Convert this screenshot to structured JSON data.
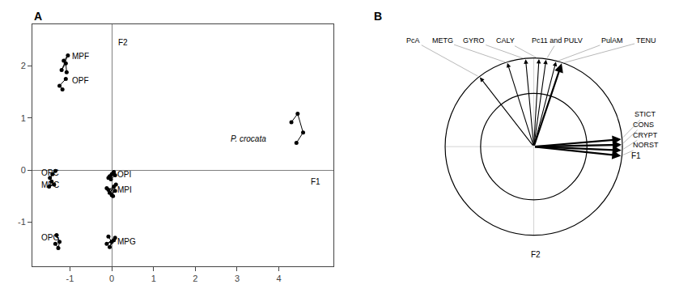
{
  "chart_data": [
    {
      "type": "scatter",
      "title": "A",
      "xlim": [
        -1.9,
        5.3
      ],
      "ylim": [
        -1.85,
        2.8
      ],
      "xticks": [
        -1,
        0,
        1,
        2,
        3,
        4
      ],
      "yticks": [
        -1,
        0,
        1,
        2
      ],
      "grid": false,
      "color": "black",
      "marker": "circle",
      "line_style": "solid",
      "series": [
        {
          "x": [
            -1.15,
            -1.05,
            -1.2,
            -1.1,
            -1.08
          ],
          "y": [
            2.1,
            2.2,
            1.92,
            2.05,
            1.88
          ]
        },
        {
          "x": [
            -1.1,
            -1.25,
            -1.18
          ],
          "y": [
            1.75,
            1.62,
            1.55
          ]
        },
        {
          "x": [
            -1.42,
            -1.35,
            -1.48
          ],
          "y": [
            -0.08,
            -0.02,
            -0.15
          ]
        },
        {
          "x": [
            -1.38,
            -1.5,
            -1.44
          ],
          "y": [
            -0.28,
            -0.32,
            -0.22
          ]
        },
        {
          "x": [
            -1.32,
            -1.25,
            -1.28,
            -1.35
          ],
          "y": [
            -1.25,
            -1.38,
            -1.5,
            -1.42
          ]
        },
        {
          "x": [
            -0.08,
            0.0,
            -0.05,
            0.05,
            -0.12,
            0.08
          ],
          "y": [
            -1.28,
            -1.38,
            -1.48,
            -1.35,
            -1.42,
            -1.3
          ]
        },
        {
          "x": [
            -0.05,
            0.0,
            0.05,
            -0.02,
            0.08,
            0.03,
            -0.08
          ],
          "y": [
            -0.12,
            -0.08,
            -0.04,
            -0.18,
            -0.1,
            -0.06,
            -0.15
          ]
        },
        {
          "x": [
            -0.08,
            0.05,
            -0.05,
            0.1,
            0.0,
            0.08,
            -0.12,
            0.03
          ],
          "y": [
            -0.38,
            -0.32,
            -0.44,
            -0.28,
            -0.48,
            -0.4,
            -0.35,
            -0.5
          ]
        },
        {
          "x": [
            4.3,
            4.45,
            4.58,
            4.42
          ],
          "y": [
            0.92,
            1.08,
            0.72,
            0.52
          ]
        }
      ],
      "annotations": [
        {
          "text": "MPF",
          "x": -0.98,
          "y": 2.18,
          "italic": false
        },
        {
          "text": "OPF",
          "x": -0.98,
          "y": 1.72,
          "italic": false
        },
        {
          "text": "OPC",
          "x": -1.72,
          "y": -0.05,
          "italic": false
        },
        {
          "text": "MPC",
          "x": -1.72,
          "y": -0.28,
          "italic": false
        },
        {
          "text": "OPG",
          "x": -1.72,
          "y": -1.3,
          "italic": false
        },
        {
          "text": "MPG",
          "x": 0.1,
          "y": -1.38,
          "italic": false
        },
        {
          "text": "OPI",
          "x": 0.1,
          "y": -0.08,
          "italic": false
        },
        {
          "text": "MPI",
          "x": 0.1,
          "y": -0.38,
          "italic": false
        },
        {
          "text": "P. crocata",
          "x": 2.8,
          "y": 0.6,
          "italic": true
        },
        {
          "text": "F1",
          "x": 4.72,
          "y": -0.22,
          "italic": false
        },
        {
          "text": "F2",
          "x": 0.12,
          "y": 2.45,
          "italic": false
        }
      ]
    },
    {
      "type": "correlation_circle",
      "title": "B",
      "xlim": [
        -1.65,
        1.55
      ],
      "ylim": [
        -1.35,
        1.38
      ],
      "tick_labels": false,
      "grid": false,
      "color": "black",
      "circles": [
        1.0,
        0.6
      ],
      "arrows": [
        {
          "label": "PcA",
          "x": -0.6078,
          "y": 0.7815,
          "line_style": "solid"
        },
        {
          "label": "METG",
          "x": -0.2979,
          "y": 0.9441,
          "line_style": "solid"
        },
        {
          "label": "GYRO",
          "x": -0.0921,
          "y": 0.9857,
          "line_style": "solid"
        },
        {
          "label": "CALY",
          "x": 0.0584,
          "y": 0.9883,
          "line_style": "solid"
        },
        {
          "label": "Pc11 and PULV",
          "x": 0.1385,
          "y": 0.9803,
          "line_style": "solid"
        },
        {
          "label": "PulAM",
          "x": 0.2503,
          "y": 0.9578,
          "line_style": "solid"
        },
        {
          "label": "TENU",
          "x": 0.3147,
          "y": 0.9386,
          "line_style": "bold"
        },
        {
          "label": "STICT",
          "x": 0.9865,
          "y": 0.0831,
          "line_style": "bold"
        },
        {
          "label": "CONS",
          "x": 0.9898,
          "y": 0.0208,
          "line_style": "bold"
        },
        {
          "label": "CRYPT",
          "x": 0.9891,
          "y": -0.0416,
          "line_style": "bold"
        },
        {
          "label": "NORST",
          "x": 0.9846,
          "y": -0.1036,
          "line_style": "bold"
        }
      ],
      "annotations": [
        {
          "text": "F1",
          "x": 1.08,
          "y": -0.1
        },
        {
          "text": "F2",
          "x": 0.02,
          "y": -1.15
        }
      ]
    }
  ]
}
